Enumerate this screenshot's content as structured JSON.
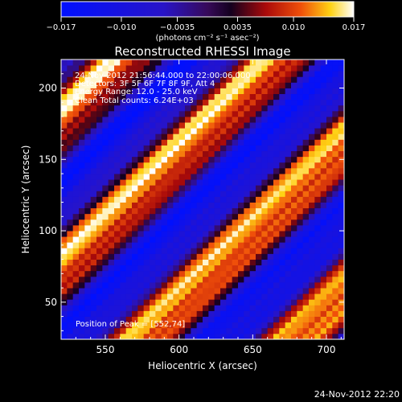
{
  "chart_data": {
    "type": "heatmap",
    "title": "Reconstructed RHESSI Image",
    "xlabel": "Heliocentric X (arcsec)",
    "ylabel": "Heliocentric Y (arcsec)",
    "xlim": [
      520,
      712
    ],
    "ylim": [
      24,
      220
    ],
    "xticks": [
      "550",
      "600",
      "650",
      "700"
    ],
    "yticks": [
      "50",
      "100",
      "150",
      "200"
    ],
    "colorbar": {
      "ticks": [
        "−0.017",
        "−0.010",
        "−0.0035",
        "0.0035",
        "0.010",
        "0.017"
      ],
      "unit_label": "(photons cm⁻² s⁻¹ asec⁻²)",
      "range": [
        -0.017,
        0.017
      ]
    },
    "annotations": [
      "24-Nov-2012 21:56:44.000 to 22:00:06.000",
      "Detectors: 3F 5F 6F 7F 8F 9F, Att 4",
      "Energy Range: 12.0 - 25.0 keV",
      "Clean    Total counts: 6.24E+03"
    ],
    "peak_label": "Position of Peak = [552,74]",
    "peak_position": [
      552,
      74
    ],
    "stripe_direction_deg": 45,
    "stripe_period_arcsec": 105
  },
  "colors": {
    "negative_max": "#0010ff",
    "zero": "#3a0a5c",
    "positive_mid": "#e01810",
    "positive_max": "#ffffff"
  },
  "footer": {
    "timestamp": "24-Nov-2012 22:20"
  }
}
